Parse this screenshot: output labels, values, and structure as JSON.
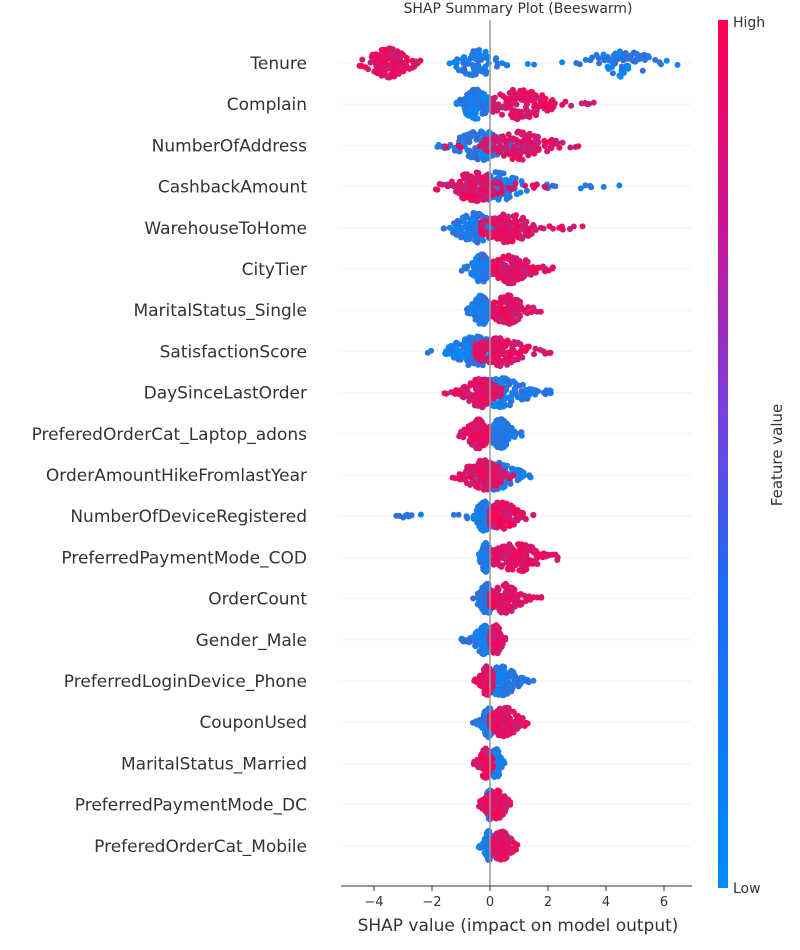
{
  "chart_data": {
    "type": "scatter",
    "title": "SHAP Summary Plot (Beeswarm)",
    "xlabel": "SHAP value (impact on model output)",
    "xlim": [
      -5.1,
      6.9
    ],
    "xticks": [
      -4,
      -2,
      0,
      2,
      4,
      6
    ],
    "colorbar": {
      "label": "Feature value",
      "high_label": "High",
      "low_label": "Low",
      "high_color": "#ff0051",
      "low_color": "#008bfb"
    },
    "features": [
      {
        "name": "Tenure",
        "high_range": [
          -4.7,
          -2.4
        ],
        "low_range": [
          -1.4,
          6.5
        ],
        "low_clusters": [
          [
            -0.5,
            0.35
          ],
          [
            4.5,
            0.6
          ]
        ],
        "high_clusters": [
          [
            -3.5,
            0.4
          ]
        ]
      },
      {
        "name": "Complain",
        "high_range": [
          0.1,
          3.6
        ],
        "low_range": [
          -1.2,
          0.0
        ],
        "low_clusters": [
          [
            -0.5,
            0.25
          ]
        ],
        "high_clusters": [
          [
            1.0,
            0.6
          ]
        ]
      },
      {
        "name": "NumberOfAddress",
        "high_range": [
          -1.8,
          3.1
        ],
        "low_range": [
          -1.9,
          1.0
        ],
        "low_clusters": [
          [
            -0.3,
            0.5
          ]
        ],
        "high_clusters": [
          [
            1.0,
            0.6
          ]
        ]
      },
      {
        "name": "CashbackAmount",
        "high_range": [
          -2.0,
          2.0
        ],
        "low_range": [
          -1.5,
          4.6
        ],
        "low_clusters": [
          [
            0.2,
            0.5
          ]
        ],
        "high_clusters": [
          [
            -0.5,
            0.5
          ]
        ]
      },
      {
        "name": "WarehouseToHome",
        "high_range": [
          -0.3,
          3.3
        ],
        "low_range": [
          -1.6,
          0.8
        ],
        "low_clusters": [
          [
            -0.5,
            0.4
          ]
        ],
        "high_clusters": [
          [
            0.6,
            0.5
          ]
        ]
      },
      {
        "name": "CityTier",
        "high_range": [
          0.1,
          2.2
        ],
        "low_range": [
          -1.0,
          0.1
        ],
        "low_clusters": [
          [
            -0.3,
            0.15
          ]
        ],
        "high_clusters": [
          [
            0.7,
            0.4
          ]
        ]
      },
      {
        "name": "MaritalStatus_Single",
        "high_range": [
          0.1,
          1.8
        ],
        "low_range": [
          -1.0,
          0.1
        ],
        "low_clusters": [
          [
            -0.3,
            0.15
          ]
        ],
        "high_clusters": [
          [
            0.6,
            0.3
          ]
        ]
      },
      {
        "name": "SatisfactionScore",
        "high_range": [
          -0.5,
          2.4
        ],
        "low_range": [
          -2.2,
          0.5
        ],
        "low_clusters": [
          [
            -0.5,
            0.5
          ]
        ],
        "high_clusters": [
          [
            0.3,
            0.5
          ]
        ]
      },
      {
        "name": "DaySinceLastOrder",
        "high_range": [
          -1.6,
          0.4
        ],
        "low_range": [
          -0.3,
          2.3
        ],
        "low_clusters": [
          [
            0.4,
            0.5
          ]
        ],
        "high_clusters": [
          [
            -0.3,
            0.3
          ]
        ]
      },
      {
        "name": "PreferedOrderCat_Laptop_adons",
        "high_range": [
          -1.1,
          -0.05
        ],
        "low_range": [
          0.0,
          1.1
        ],
        "low_clusters": [
          [
            0.35,
            0.2
          ]
        ],
        "high_clusters": [
          [
            -0.4,
            0.2
          ]
        ]
      },
      {
        "name": "OrderAmountHikeFromlastYear",
        "high_range": [
          -1.6,
          0.8
        ],
        "low_range": [
          -0.6,
          1.6
        ],
        "low_clusters": [
          [
            0.2,
            0.4
          ]
        ],
        "high_clusters": [
          [
            -0.2,
            0.4
          ]
        ]
      },
      {
        "name": "NumberOfDeviceRegistered",
        "high_range": [
          0.0,
          1.6
        ],
        "low_range": [
          -3.3,
          0.2
        ],
        "low_clusters": [
          [
            -0.2,
            0.15
          ]
        ],
        "high_clusters": [
          [
            0.4,
            0.3
          ]
        ]
      },
      {
        "name": "PreferredPaymentMode_COD",
        "high_range": [
          0.1,
          2.4
        ],
        "low_range": [
          -0.4,
          0.1
        ],
        "low_clusters": [
          [
            -0.15,
            0.08
          ]
        ],
        "high_clusters": [
          [
            0.9,
            0.5
          ]
        ]
      },
      {
        "name": "OrderCount",
        "high_range": [
          0.0,
          1.8
        ],
        "low_range": [
          -0.6,
          0.4
        ],
        "low_clusters": [
          [
            -0.1,
            0.15
          ]
        ],
        "high_clusters": [
          [
            0.5,
            0.3
          ]
        ]
      },
      {
        "name": "Gender_Male",
        "high_range": [
          0.0,
          0.6
        ],
        "low_range": [
          -1.1,
          0.0
        ],
        "low_clusters": [
          [
            -0.2,
            0.15
          ]
        ],
        "high_clusters": [
          [
            0.2,
            0.1
          ]
        ]
      },
      {
        "name": "PreferredLoginDevice_Phone",
        "high_range": [
          -0.6,
          0.1
        ],
        "low_range": [
          0.0,
          1.6
        ],
        "low_clusters": [
          [
            0.4,
            0.3
          ]
        ],
        "high_clusters": [
          [
            -0.1,
            0.1
          ]
        ]
      },
      {
        "name": "CouponUsed",
        "high_range": [
          0.0,
          1.3
        ],
        "low_range": [
          -0.6,
          0.4
        ],
        "low_clusters": [
          [
            -0.05,
            0.1
          ]
        ],
        "high_clusters": [
          [
            0.5,
            0.3
          ]
        ]
      },
      {
        "name": "MaritalStatus_Married",
        "high_range": [
          -0.6,
          0.1
        ],
        "low_range": [
          -0.1,
          0.5
        ],
        "low_clusters": [
          [
            0.2,
            0.1
          ]
        ],
        "high_clusters": [
          [
            -0.15,
            0.1
          ]
        ]
      },
      {
        "name": "PreferredPaymentMode_DC",
        "high_range": [
          -0.4,
          0.7
        ],
        "low_range": [
          -0.1,
          0.3
        ],
        "low_clusters": [
          [
            0.0,
            0.08
          ]
        ],
        "high_clusters": [
          [
            0.2,
            0.2
          ]
        ]
      },
      {
        "name": "PreferedOrderCat_Mobile",
        "high_range": [
          0.1,
          1.0
        ],
        "low_range": [
          -0.4,
          0.1
        ],
        "low_clusters": [
          [
            -0.05,
            0.06
          ]
        ],
        "high_clusters": [
          [
            0.4,
            0.2
          ]
        ]
      }
    ]
  }
}
